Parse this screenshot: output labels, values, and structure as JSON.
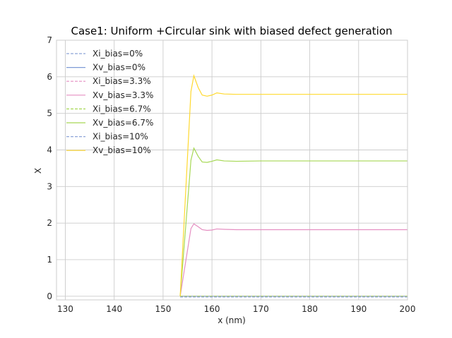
{
  "chart_data": {
    "type": "line",
    "title": "Case1: Uniform +Circular sink with biased defect generation",
    "xlabel": "x (nm)",
    "ylabel": "X",
    "xlim": [
      128.2,
      200
    ],
    "ylim": [
      -0.1,
      7
    ],
    "xticks": [
      130,
      140,
      150,
      160,
      170,
      180,
      190,
      200
    ],
    "xtick_labels": [
      "130",
      "140",
      "150",
      "160",
      "170",
      "180",
      "190",
      "200"
    ],
    "yticks": [
      0,
      1,
      2,
      3,
      4,
      5,
      6,
      7
    ],
    "ytick_labels": [
      "0",
      "1",
      "2",
      "3",
      "4",
      "5",
      "6",
      "7"
    ],
    "grid": true,
    "legend_position": "top-left",
    "series": [
      {
        "name": "Xi_bias=0%",
        "style": "dashed",
        "color": "#8ea5d8",
        "x": [
          153.5,
          200
        ],
        "y": [
          0.0,
          0.0
        ]
      },
      {
        "name": "Xv_bias=0%",
        "style": "solid",
        "color": "#7f9bd6",
        "x": [
          153.5,
          200
        ],
        "y": [
          0.0,
          0.0
        ]
      },
      {
        "name": "Xi_bias=3.3%",
        "style": "dashed",
        "color": "#e58fc2",
        "x": [
          153.5,
          200
        ],
        "y": [
          0.0,
          0.0
        ]
      },
      {
        "name": "Xv_bias=3.3%",
        "style": "solid",
        "color": "#e58fc2",
        "x": [
          153.5,
          155.7,
          156.3,
          157.2,
          158.0,
          159.0,
          160.0,
          161.0,
          162.5,
          165.0,
          170.0,
          200.0
        ],
        "y": [
          0.0,
          1.85,
          1.98,
          1.9,
          1.82,
          1.8,
          1.81,
          1.84,
          1.83,
          1.82,
          1.82,
          1.82
        ]
      },
      {
        "name": "Xi_bias=6.7%",
        "style": "dashed",
        "color": "#a6d854",
        "x": [
          153.5,
          200
        ],
        "y": [
          0.0,
          0.0
        ]
      },
      {
        "name": "Xv_bias=6.7%",
        "style": "solid",
        "color": "#a6d854",
        "x": [
          153.5,
          155.7,
          156.3,
          157.2,
          158.0,
          159.0,
          160.0,
          161.0,
          162.5,
          165.0,
          170.0,
          200.0
        ],
        "y": [
          0.0,
          3.72,
          4.05,
          3.82,
          3.67,
          3.66,
          3.69,
          3.73,
          3.7,
          3.69,
          3.7,
          3.7
        ]
      },
      {
        "name": "Xi_bias=10%",
        "style": "dashed",
        "color": "#8ea5d8",
        "x": [
          153.5,
          200
        ],
        "y": [
          -0.02,
          -0.02
        ]
      },
      {
        "name": "Xv_bias=10%",
        "style": "solid",
        "color": "#ffd92f",
        "x": [
          153.5,
          155.7,
          156.3,
          157.2,
          158.0,
          159.0,
          160.0,
          161.0,
          162.5,
          165.0,
          170.0,
          200.0
        ],
        "y": [
          0.0,
          5.6,
          6.03,
          5.7,
          5.5,
          5.47,
          5.5,
          5.56,
          5.53,
          5.52,
          5.52,
          5.52
        ]
      }
    ]
  }
}
